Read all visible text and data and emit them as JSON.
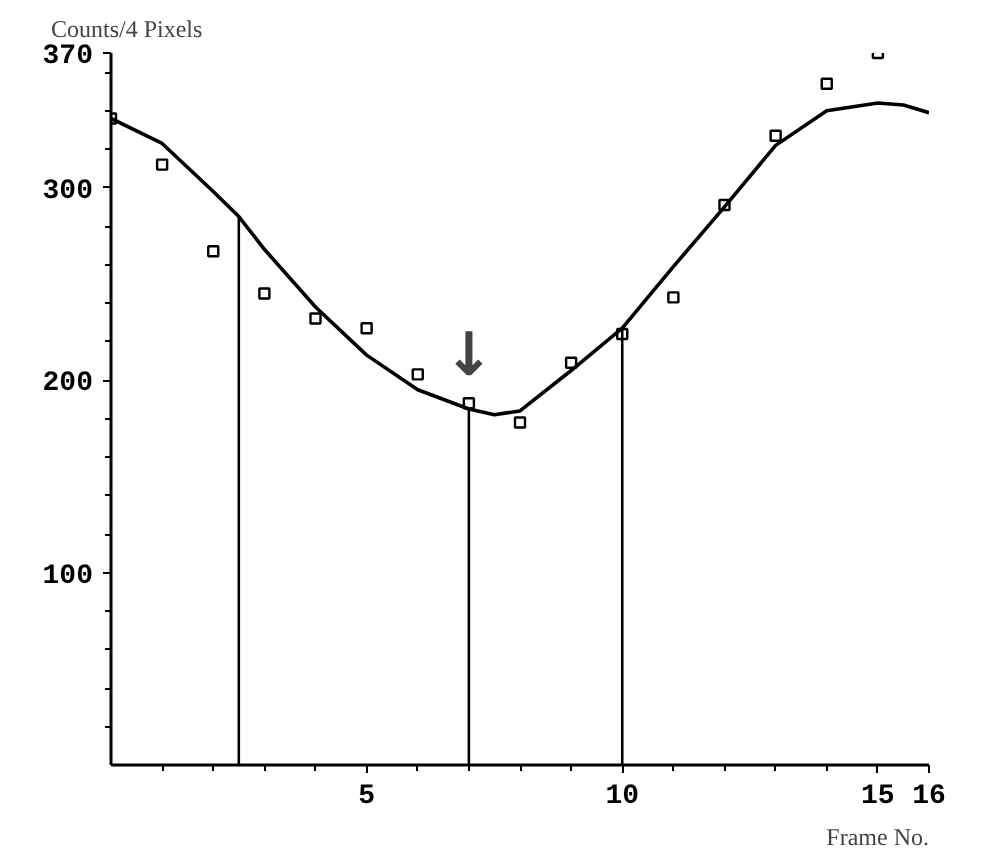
{
  "chart_data": {
    "type": "scatter",
    "xlabel": "Frame No.",
    "ylabel": "Counts/4 Pixels",
    "xlim": [
      0,
      16
    ],
    "ylim": [
      0,
      370
    ],
    "xticks": [
      {
        "value": 1,
        "label": null
      },
      {
        "value": 2,
        "label": null
      },
      {
        "value": 3,
        "label": null
      },
      {
        "value": 4,
        "label": null
      },
      5,
      {
        "value": 6,
        "label": null
      },
      {
        "value": 7,
        "label": null
      },
      {
        "value": 8,
        "label": null
      },
      {
        "value": 9,
        "label": null
      },
      10,
      {
        "value": 11,
        "label": null
      },
      {
        "value": 12,
        "label": null
      },
      {
        "value": 13,
        "label": null
      },
      {
        "value": 14,
        "label": null
      },
      15,
      16
    ],
    "yticks": [
      {
        "value": 20,
        "label": null
      },
      {
        "value": 40,
        "label": null
      },
      {
        "value": 60,
        "label": null
      },
      {
        "value": 80,
        "label": null
      },
      100,
      {
        "value": 120,
        "label": null
      },
      {
        "value": 140,
        "label": null
      },
      {
        "value": 160,
        "label": null
      },
      {
        "value": 180,
        "label": null
      },
      200,
      {
        "value": 220,
        "label": null
      },
      {
        "value": 240,
        "label": null
      },
      {
        "value": 260,
        "label": null
      },
      {
        "value": 280,
        "label": null
      },
      300,
      {
        "value": 320,
        "label": null
      },
      {
        "value": 340,
        "label": null
      },
      {
        "value": 360,
        "label": null
      },
      370
    ],
    "grid": false,
    "annotations": [
      {
        "text": "↓",
        "x": 7,
        "y": 188
      }
    ],
    "series": [
      {
        "marker": "square",
        "color": "#000000",
        "x": [
          0,
          1,
          2,
          3,
          4,
          5,
          6,
          7,
          8,
          9,
          10,
          11,
          12,
          13,
          14,
          15
        ],
        "values": [
          336,
          312,
          267,
          245,
          232,
          227,
          203,
          188,
          178,
          209,
          224,
          243,
          291,
          327,
          354,
          370
        ]
      },
      {
        "type": "line",
        "marker": "none",
        "line_style": "solid",
        "color": "#000000",
        "x": [
          0,
          1,
          2,
          2.5,
          3,
          4,
          5,
          6,
          7,
          7.5,
          8,
          9,
          10,
          11,
          12,
          13,
          14,
          15,
          15.5,
          16
        ],
        "values": [
          336,
          323,
          298,
          285,
          268,
          238,
          213,
          195,
          185,
          182,
          184,
          205,
          227,
          259,
          290,
          322,
          340,
          344,
          343,
          339
        ]
      },
      {
        "type": "bar",
        "color": "#000000",
        "x": [
          2.5,
          7,
          10
        ],
        "values": [
          285,
          185,
          227
        ]
      }
    ]
  }
}
